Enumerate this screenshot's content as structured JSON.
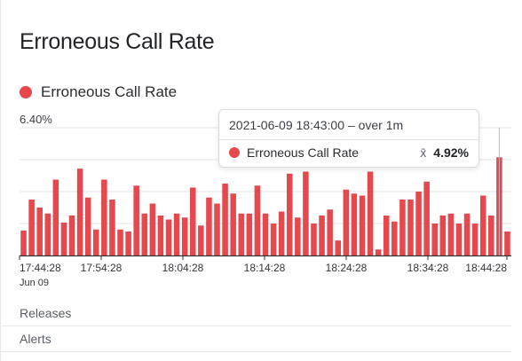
{
  "panel": {
    "title": "Erroneous Call Rate"
  },
  "legend": [
    {
      "label": "Erroneous Call Rate",
      "color": "#e5484d"
    }
  ],
  "tooltip": {
    "header": "2021-06-09 18:43:00 – over 1m",
    "series": "Erroneous Call Rate",
    "agg_icon": "x̄",
    "value": "4.92%"
  },
  "sections": [
    {
      "label": "Releases"
    },
    {
      "label": "Alerts"
    }
  ],
  "chart_data": {
    "type": "bar",
    "color": "#e5484d",
    "y_max_label": "6.40%",
    "ylim": [
      0,
      6.4
    ],
    "x_ticks": [
      "17:44:28",
      "17:54:28",
      "18:04:28",
      "18:14:28",
      "18:24:28",
      "18:34:28",
      "18:44:28"
    ],
    "x_sublabel": "Jun 09",
    "values": [
      1.25,
      2.8,
      2.4,
      2.1,
      3.8,
      1.65,
      2.0,
      4.35,
      2.9,
      1.3,
      3.8,
      2.8,
      1.3,
      1.2,
      3.5,
      2.1,
      2.6,
      2.0,
      1.8,
      2.1,
      1.9,
      3.4,
      1.5,
      2.9,
      2.6,
      3.6,
      3.1,
      2.1,
      2.1,
      3.5,
      2.1,
      1.6,
      2.2,
      4.1,
      1.9,
      4.2,
      1.6,
      2.0,
      2.3,
      0.75,
      3.3,
      3.1,
      3.0,
      4.2,
      0.3,
      2.0,
      1.7,
      2.8,
      2.8,
      3.2,
      3.7,
      1.6,
      2.0,
      2.1,
      1.6,
      2.1,
      1.6,
      3.0,
      2.0,
      4.92,
      1.2
    ]
  }
}
